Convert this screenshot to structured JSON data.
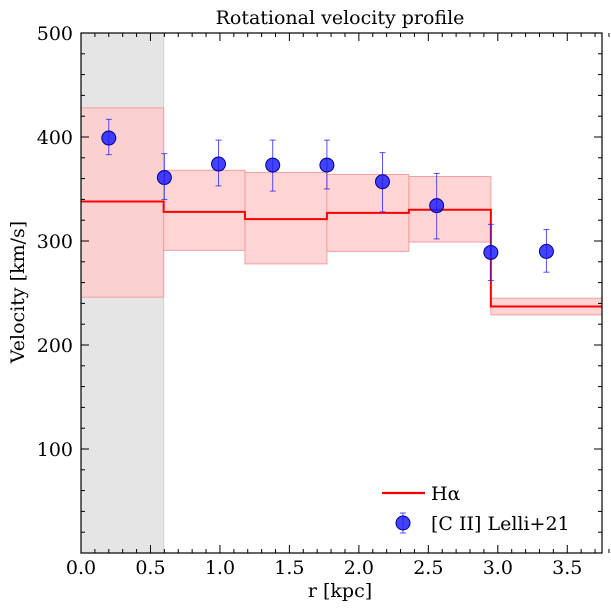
{
  "chart_data": {
    "type": "line",
    "title": "Rotational velocity profile",
    "xlabel": "r [kpc]",
    "ylabel": "Velocity [km/s]",
    "xlim": [
      0.0,
      3.75
    ],
    "ylim": [
      0,
      500
    ],
    "x_major_ticks": [
      0.0,
      0.5,
      1.0,
      1.5,
      2.0,
      2.5,
      3.0,
      3.5
    ],
    "x_tick_labels": [
      "0.0",
      "0.5",
      "1.0",
      "1.5",
      "2.0",
      "2.5",
      "3.0",
      "3.5"
    ],
    "x_minor_step": 0.1,
    "y_major_ticks": [
      100,
      200,
      300,
      400,
      500
    ],
    "y_tick_labels": [
      "100",
      "200",
      "300",
      "400",
      "500"
    ],
    "y_minor_step": 20,
    "grid": false,
    "legend_position": "lower-right",
    "shaded_region": {
      "x_start": 0.0,
      "x_end": 0.595,
      "color": "#e5e5e5"
    },
    "series": [
      {
        "name": "Hα",
        "kind": "step-line-with-band",
        "color": "#ff0000",
        "band_color": "#ffcccc",
        "bins": [
          {
            "x0": 0.0,
            "x1": 0.595,
            "v": 338,
            "lo": 246,
            "hi": 428
          },
          {
            "x0": 0.595,
            "x1": 1.18,
            "v": 328,
            "lo": 291,
            "hi": 368
          },
          {
            "x0": 1.18,
            "x1": 1.77,
            "v": 321,
            "lo": 278,
            "hi": 366
          },
          {
            "x0": 1.77,
            "x1": 2.36,
            "v": 327,
            "lo": 290,
            "hi": 364
          },
          {
            "x0": 2.36,
            "x1": 2.95,
            "v": 330,
            "lo": 299,
            "hi": 362
          },
          {
            "x0": 2.95,
            "x1": 3.75,
            "v": 237,
            "lo": 229,
            "hi": 245
          }
        ]
      },
      {
        "name": "[C II] Lelli+21",
        "kind": "errorbar-scatter",
        "color": "#1a1aff",
        "points": [
          {
            "x": 0.2,
            "y": 399,
            "err_lo": 16,
            "err_hi": 18
          },
          {
            "x": 0.6,
            "y": 361,
            "err_lo": 21,
            "err_hi": 23
          },
          {
            "x": 0.99,
            "y": 374,
            "err_lo": 21,
            "err_hi": 23
          },
          {
            "x": 1.38,
            "y": 373,
            "err_lo": 25,
            "err_hi": 24
          },
          {
            "x": 1.77,
            "y": 373,
            "err_lo": 23,
            "err_hi": 24
          },
          {
            "x": 2.17,
            "y": 357,
            "err_lo": 29,
            "err_hi": 28
          },
          {
            "x": 2.56,
            "y": 334,
            "err_lo": 32,
            "err_hi": 31
          },
          {
            "x": 2.95,
            "y": 289,
            "err_lo": 27,
            "err_hi": 27
          },
          {
            "x": 3.35,
            "y": 290,
            "err_lo": 20,
            "err_hi": 21
          }
        ]
      }
    ]
  }
}
